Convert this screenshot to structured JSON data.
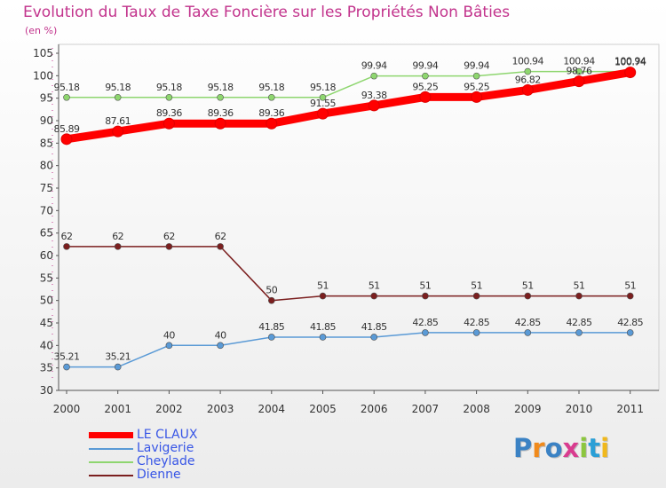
{
  "header": {
    "title": "Evolution du Taux de Taxe Foncière sur les Propriétés Non Bâties",
    "unit": "(en %)"
  },
  "chart_data": {
    "type": "line",
    "categories": [
      "2000",
      "2001",
      "2002",
      "2003",
      "2004",
      "2005",
      "2006",
      "2007",
      "2008",
      "2009",
      "2010",
      "2011"
    ],
    "ylim": [
      30,
      105
    ],
    "yticks": [
      30,
      35,
      40,
      45,
      50,
      55,
      60,
      65,
      70,
      75,
      80,
      85,
      90,
      95,
      100,
      105
    ],
    "ytick_labels": [
      "30",
      "35",
      "40",
      "45",
      "50",
      "55",
      "60",
      "65",
      "70",
      "75",
      "80",
      "85",
      "90",
      "95",
      "100",
      "105"
    ],
    "grid": false,
    "legend_position": "bottom-left",
    "series": [
      {
        "name": "Cheylade",
        "color": "#8ed66f",
        "values": [
          95.18,
          95.18,
          95.18,
          95.18,
          95.18,
          95.18,
          99.94,
          99.94,
          99.94,
          100.94,
          100.94,
          100.94
        ],
        "labels": [
          "95.18",
          "95.18",
          "95.18",
          "95.18",
          "95.18",
          "95.18",
          "99.94",
          "99.94",
          "99.94",
          "100.94",
          "100.94",
          "100.94"
        ]
      },
      {
        "name": "Dienne",
        "color": "#7b1f1f",
        "values": [
          62,
          62,
          62,
          62,
          50,
          51,
          51,
          51,
          51,
          51,
          51,
          51
        ],
        "labels": [
          "62",
          "62",
          "62",
          "62",
          "50",
          "51",
          "51",
          "51",
          "51",
          "51",
          "51",
          "51"
        ]
      },
      {
        "name": "Lavigerie",
        "color": "#5a9ad6",
        "values": [
          35.21,
          35.21,
          40,
          40,
          41.85,
          41.85,
          41.85,
          42.85,
          42.85,
          42.85,
          42.85,
          42.85
        ],
        "labels": [
          "35.21",
          "35.21",
          "40",
          "40",
          "41.85",
          "41.85",
          "41.85",
          "42.85",
          "42.85",
          "42.85",
          "42.85",
          "42.85"
        ]
      },
      {
        "name": "LE CLAUX",
        "color": "#ff0000",
        "values": [
          85.89,
          87.61,
          89.36,
          89.36,
          89.36,
          91.55,
          93.38,
          95.25,
          95.25,
          96.82,
          98.76,
          100.74
        ],
        "labels": [
          "85.89",
          "87.61",
          "89.36",
          "89.36",
          "89.36",
          "91.55",
          "93.38",
          "95.25",
          "95.25",
          "96.82",
          "98.76",
          "100.74"
        ]
      }
    ]
  },
  "legend": {
    "items": [
      {
        "label": "LE CLAUX",
        "color": "#ff0000"
      },
      {
        "label": "Lavigerie",
        "color": "#5a9ad6"
      },
      {
        "label": "Cheylade",
        "color": "#8ed66f"
      },
      {
        "label": "Dienne",
        "color": "#7b1f1f"
      }
    ]
  },
  "brand": {
    "logo_text": "Proxiti",
    "colors": [
      "#3b82c4",
      "#f08a1c",
      "#3b82c4",
      "#d93c8f",
      "#8cc63f",
      "#2a9fd6",
      "#f0b81c"
    ]
  }
}
